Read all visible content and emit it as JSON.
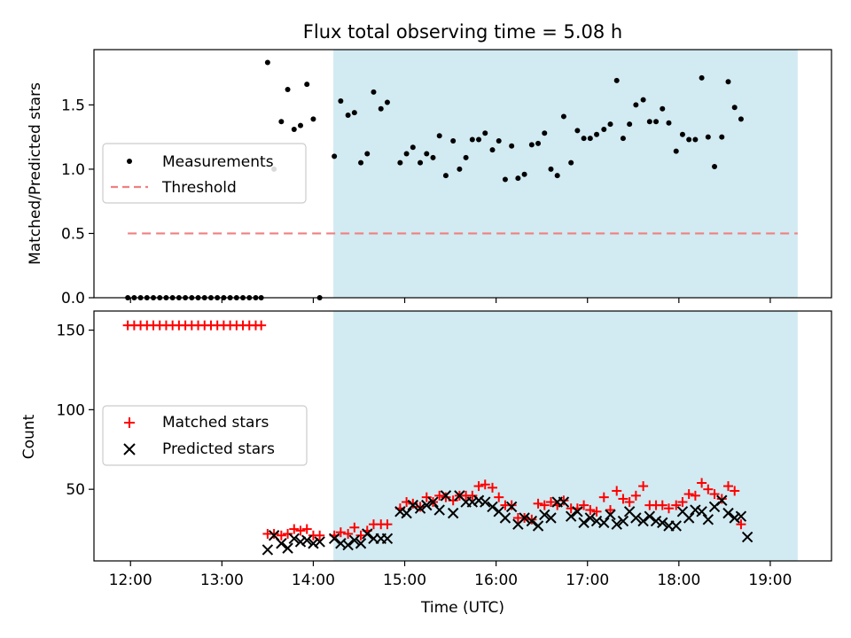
{
  "chart_data": {
    "type": "scatter",
    "title": "Flux total observing time = 5.08 h",
    "xlabel": "Time (UTC)",
    "x_ticks": [
      "12:00",
      "13:00",
      "14:00",
      "15:00",
      "16:00",
      "17:00",
      "18:00",
      "19:00"
    ],
    "x_tick_hours": [
      12,
      13,
      14,
      15,
      16,
      17,
      18,
      19
    ],
    "xlim_hours": [
      11.6,
      19.67
    ],
    "shaded_region_hours": [
      14.22,
      19.3
    ],
    "colors": {
      "measurements": "#000000",
      "threshold": "#f08080",
      "matched": "#ff0000",
      "predicted": "#000000",
      "shade": "#add8e6"
    },
    "top_panel": {
      "ylabel": "Matched/Predicted stars",
      "ylim": [
        0,
        1.93
      ],
      "y_ticks": [
        "0.0",
        "0.5",
        "1.0",
        "1.5"
      ],
      "y_tick_values": [
        0,
        0.5,
        1.0,
        1.5
      ],
      "legend": {
        "position": "center-left",
        "entries": [
          "Measurements",
          "Threshold"
        ]
      },
      "threshold": {
        "value": 0.5,
        "x_hours": [
          11.97,
          19.3
        ]
      },
      "measurements": [
        [
          11.97,
          0
        ],
        [
          12.04,
          0
        ],
        [
          12.11,
          0
        ],
        [
          12.18,
          0
        ],
        [
          12.25,
          0
        ],
        [
          12.32,
          0
        ],
        [
          12.39,
          0
        ],
        [
          12.46,
          0
        ],
        [
          12.53,
          0
        ],
        [
          12.6,
          0
        ],
        [
          12.67,
          0
        ],
        [
          12.74,
          0
        ],
        [
          12.81,
          0
        ],
        [
          12.88,
          0
        ],
        [
          12.95,
          0
        ],
        [
          13.02,
          0
        ],
        [
          13.09,
          0
        ],
        [
          13.16,
          0
        ],
        [
          13.23,
          0
        ],
        [
          13.3,
          0
        ],
        [
          13.37,
          0
        ],
        [
          13.43,
          0
        ],
        [
          13.5,
          1.83
        ],
        [
          13.57,
          1.0
        ],
        [
          13.65,
          1.37
        ],
        [
          13.72,
          1.62
        ],
        [
          13.79,
          1.31
        ],
        [
          13.86,
          1.34
        ],
        [
          13.93,
          1.66
        ],
        [
          14.0,
          1.39
        ],
        [
          14.07,
          0
        ],
        [
          14.23,
          1.1
        ],
        [
          14.3,
          1.53
        ],
        [
          14.38,
          1.42
        ],
        [
          14.45,
          1.44
        ],
        [
          14.52,
          1.05
        ],
        [
          14.59,
          1.12
        ],
        [
          14.66,
          1.6
        ],
        [
          14.74,
          1.47
        ],
        [
          14.81,
          1.52
        ],
        [
          14.95,
          1.05
        ],
        [
          15.02,
          1.12
        ],
        [
          15.09,
          1.17
        ],
        [
          15.17,
          1.05
        ],
        [
          15.24,
          1.12
        ],
        [
          15.31,
          1.09
        ],
        [
          15.38,
          1.26
        ],
        [
          15.45,
          0.95
        ],
        [
          15.53,
          1.22
        ],
        [
          15.6,
          1.0
        ],
        [
          15.67,
          1.09
        ],
        [
          15.74,
          1.23
        ],
        [
          15.81,
          1.23
        ],
        [
          15.88,
          1.28
        ],
        [
          15.96,
          1.15
        ],
        [
          16.03,
          1.22
        ],
        [
          16.1,
          0.92
        ],
        [
          16.17,
          1.18
        ],
        [
          16.24,
          0.93
        ],
        [
          16.31,
          0.96
        ],
        [
          16.39,
          1.19
        ],
        [
          16.46,
          1.2
        ],
        [
          16.53,
          1.28
        ],
        [
          16.6,
          1.0
        ],
        [
          16.67,
          0.95
        ],
        [
          16.74,
          1.41
        ],
        [
          16.82,
          1.05
        ],
        [
          16.89,
          1.3
        ],
        [
          16.96,
          1.24
        ],
        [
          17.03,
          1.24
        ],
        [
          17.1,
          1.27
        ],
        [
          17.18,
          1.31
        ],
        [
          17.25,
          1.35
        ],
        [
          17.32,
          1.69
        ],
        [
          17.39,
          1.24
        ],
        [
          17.46,
          1.35
        ],
        [
          17.53,
          1.5
        ],
        [
          17.61,
          1.54
        ],
        [
          17.68,
          1.37
        ],
        [
          17.75,
          1.37
        ],
        [
          17.82,
          1.47
        ],
        [
          17.89,
          1.36
        ],
        [
          17.97,
          1.14
        ],
        [
          18.04,
          1.27
        ],
        [
          18.11,
          1.23
        ],
        [
          18.18,
          1.23
        ],
        [
          18.25,
          1.71
        ],
        [
          18.32,
          1.25
        ],
        [
          18.39,
          1.02
        ],
        [
          18.47,
          1.25
        ],
        [
          18.54,
          1.68
        ],
        [
          18.61,
          1.48
        ],
        [
          18.68,
          1.39
        ]
      ]
    },
    "bottom_panel": {
      "ylabel": "Count",
      "ylim": [
        5,
        162
      ],
      "y_ticks": [
        "50",
        "100",
        "150"
      ],
      "y_tick_values": [
        50,
        100,
        150
      ],
      "legend": {
        "position": "center-left",
        "entries": [
          "Matched stars",
          "Predicted stars"
        ]
      },
      "matched": [
        [
          11.97,
          153
        ],
        [
          12.04,
          153
        ],
        [
          12.11,
          153
        ],
        [
          12.18,
          153
        ],
        [
          12.25,
          153
        ],
        [
          12.32,
          153
        ],
        [
          12.39,
          153
        ],
        [
          12.46,
          153
        ],
        [
          12.53,
          153
        ],
        [
          12.6,
          153
        ],
        [
          12.67,
          153
        ],
        [
          12.74,
          153
        ],
        [
          12.81,
          153
        ],
        [
          12.88,
          153
        ],
        [
          12.95,
          153
        ],
        [
          13.02,
          153
        ],
        [
          13.09,
          153
        ],
        [
          13.16,
          153
        ],
        [
          13.23,
          153
        ],
        [
          13.3,
          153
        ],
        [
          13.37,
          153
        ],
        [
          13.43,
          153
        ],
        [
          13.5,
          22
        ],
        [
          13.57,
          22
        ],
        [
          13.65,
          21
        ],
        [
          13.72,
          22
        ],
        [
          13.79,
          25
        ],
        [
          13.86,
          24
        ],
        [
          13.93,
          25
        ],
        [
          14.0,
          21
        ],
        [
          14.07,
          21
        ],
        [
          14.23,
          21
        ],
        [
          14.3,
          23
        ],
        [
          14.38,
          22
        ],
        [
          14.45,
          26
        ],
        [
          14.52,
          21
        ],
        [
          14.59,
          24
        ],
        [
          14.66,
          28
        ],
        [
          14.74,
          28
        ],
        [
          14.81,
          28
        ],
        [
          14.95,
          38
        ],
        [
          15.02,
          42
        ],
        [
          15.09,
          41
        ],
        [
          15.17,
          39
        ],
        [
          15.24,
          45
        ],
        [
          15.31,
          42
        ],
        [
          15.38,
          46
        ],
        [
          15.45,
          45
        ],
        [
          15.53,
          43
        ],
        [
          15.6,
          46
        ],
        [
          15.67,
          46
        ],
        [
          15.74,
          46
        ],
        [
          15.81,
          52
        ],
        [
          15.88,
          53
        ],
        [
          15.96,
          51
        ],
        [
          16.03,
          45
        ],
        [
          16.1,
          40
        ],
        [
          16.17,
          40
        ],
        [
          16.24,
          32
        ],
        [
          16.31,
          32
        ],
        [
          16.39,
          31
        ],
        [
          16.46,
          41
        ],
        [
          16.53,
          40
        ],
        [
          16.6,
          42
        ],
        [
          16.67,
          40
        ],
        [
          16.74,
          43
        ],
        [
          16.82,
          38
        ],
        [
          16.89,
          38
        ],
        [
          16.96,
          40
        ],
        [
          17.03,
          37
        ],
        [
          17.1,
          36
        ],
        [
          17.18,
          45
        ],
        [
          17.25,
          37
        ],
        [
          17.32,
          49
        ],
        [
          17.39,
          44
        ],
        [
          17.46,
          42
        ],
        [
          17.53,
          46
        ],
        [
          17.61,
          52
        ],
        [
          17.68,
          40
        ],
        [
          17.75,
          40
        ],
        [
          17.82,
          40
        ],
        [
          17.89,
          38
        ],
        [
          17.97,
          40
        ],
        [
          18.04,
          42
        ],
        [
          18.11,
          47
        ],
        [
          18.18,
          46
        ],
        [
          18.25,
          54
        ],
        [
          18.32,
          50
        ],
        [
          18.39,
          47
        ],
        [
          18.47,
          44
        ],
        [
          18.54,
          52
        ],
        [
          18.61,
          49
        ],
        [
          18.68,
          28
        ]
      ],
      "predicted": [
        [
          13.5,
          12
        ],
        [
          13.57,
          21
        ],
        [
          13.65,
          16
        ],
        [
          13.72,
          13
        ],
        [
          13.79,
          19
        ],
        [
          13.86,
          17
        ],
        [
          13.93,
          18
        ],
        [
          14.0,
          16
        ],
        [
          14.07,
          17
        ],
        [
          14.23,
          19
        ],
        [
          14.3,
          16
        ],
        [
          14.38,
          15
        ],
        [
          14.45,
          18
        ],
        [
          14.52,
          16
        ],
        [
          14.59,
          22
        ],
        [
          14.66,
          19
        ],
        [
          14.74,
          19
        ],
        [
          14.81,
          19
        ],
        [
          14.95,
          36
        ],
        [
          15.02,
          35
        ],
        [
          15.09,
          40
        ],
        [
          15.17,
          38
        ],
        [
          15.24,
          40
        ],
        [
          15.31,
          42
        ],
        [
          15.38,
          37
        ],
        [
          15.45,
          46
        ],
        [
          15.53,
          35
        ],
        [
          15.6,
          46
        ],
        [
          15.67,
          42
        ],
        [
          15.74,
          42
        ],
        [
          15.81,
          43
        ],
        [
          15.88,
          42
        ],
        [
          15.96,
          39
        ],
        [
          16.03,
          36
        ],
        [
          16.1,
          32
        ],
        [
          16.17,
          39
        ],
        [
          16.24,
          28
        ],
        [
          16.31,
          32
        ],
        [
          16.39,
          30
        ],
        [
          16.46,
          27
        ],
        [
          16.53,
          34
        ],
        [
          16.6,
          32
        ],
        [
          16.67,
          42
        ],
        [
          16.74,
          42
        ],
        [
          16.82,
          33
        ],
        [
          16.89,
          36
        ],
        [
          16.96,
          29
        ],
        [
          17.03,
          32
        ],
        [
          17.1,
          30
        ],
        [
          17.18,
          29
        ],
        [
          17.25,
          34
        ],
        [
          17.32,
          28
        ],
        [
          17.39,
          30
        ],
        [
          17.46,
          36
        ],
        [
          17.53,
          32
        ],
        [
          17.61,
          30
        ],
        [
          17.68,
          33
        ],
        [
          17.75,
          30
        ],
        [
          17.82,
          29
        ],
        [
          17.89,
          27
        ],
        [
          17.97,
          27
        ],
        [
          18.04,
          36
        ],
        [
          18.11,
          32
        ],
        [
          18.18,
          37
        ],
        [
          18.25,
          36
        ],
        [
          18.32,
          31
        ],
        [
          18.39,
          39
        ],
        [
          18.47,
          43
        ],
        [
          18.54,
          35
        ],
        [
          18.61,
          32
        ],
        [
          18.68,
          33
        ],
        [
          18.75,
          20
        ]
      ]
    }
  }
}
